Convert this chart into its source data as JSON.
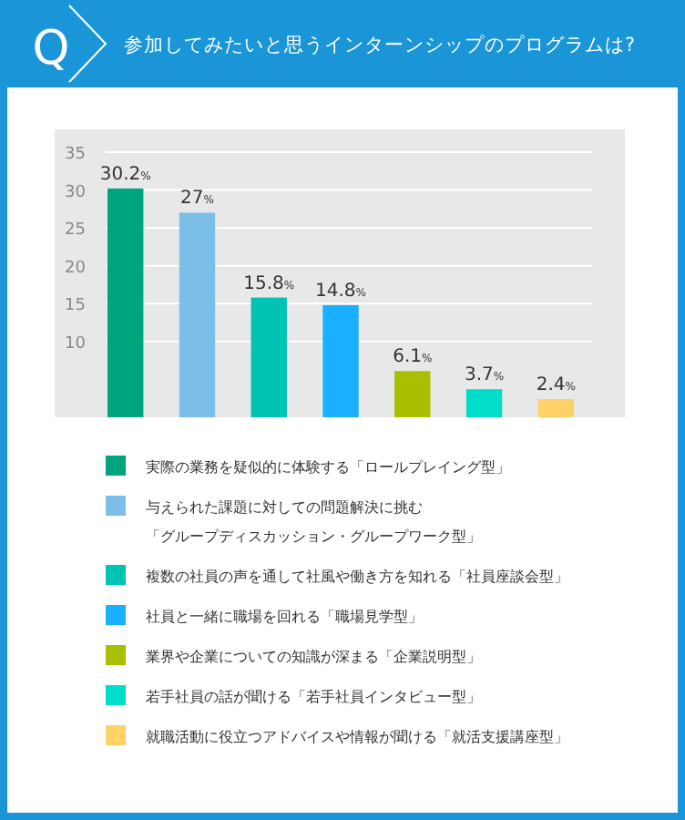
{
  "chart_data": {
    "type": "bar",
    "title": "参加してみたいと思うインターンシップのプログラムは?",
    "annotations": [
      "Q"
    ],
    "categories": [
      null,
      null,
      null,
      null,
      null,
      null,
      null
    ],
    "series": [
      {
        "name": "実際の業務を疑似的に体験する「ロールプレイング型」",
        "color": "#00a57e",
        "values": [
          30.2,
          null,
          null,
          null,
          null,
          null,
          null
        ],
        "value_labels": [
          "30.2%",
          null,
          null,
          null,
          null,
          null,
          null
        ]
      },
      {
        "name": "与えられた課題に対しての問題解決に挑む「グループディスカッション・グループワーク型」",
        "color": "#7bbfe8",
        "values": [
          null,
          27,
          null,
          null,
          null,
          null,
          null
        ],
        "value_labels": [
          null,
          "27%",
          null,
          null,
          null,
          null,
          null
        ]
      },
      {
        "name": "複数の社員の声を通して社風や働き方を知れる「社員座談会型」",
        "color": "#00c4b3",
        "values": [
          null,
          null,
          15.8,
          null,
          null,
          null,
          null
        ],
        "value_labels": [
          null,
          null,
          "15.8%",
          null,
          null,
          null,
          null
        ]
      },
      {
        "name": "社員と一緒に職場を回れる「職場見学型」",
        "color": "#1aafff",
        "values": [
          null,
          null,
          null,
          14.8,
          null,
          null,
          null
        ],
        "value_labels": [
          null,
          null,
          null,
          "14.8%",
          null,
          null,
          null
        ]
      },
      {
        "name": "業界や企業についての知識が深まる「企業説明型」",
        "color": "#a8c000",
        "values": [
          null,
          null,
          null,
          null,
          6.1,
          null,
          null
        ],
        "value_labels": [
          null,
          null,
          null,
          null,
          "6.1%",
          null,
          null
        ]
      },
      {
        "name": "若手社員の話が聞ける「若手社員インタビュー型」",
        "color": "#00ddc8",
        "values": [
          null,
          null,
          null,
          null,
          null,
          3.7,
          null
        ],
        "value_labels": [
          null,
          null,
          null,
          null,
          null,
          "3.7%",
          null
        ]
      },
      {
        "name": "就職活動に役立つアドバイスや情報が聞ける「就活支援講座型」",
        "color": "#ffd166",
        "values": [
          null,
          null,
          null,
          null,
          null,
          null,
          2.4
        ],
        "value_labels": [
          null,
          null,
          null,
          null,
          null,
          null,
          "2.4%"
        ]
      }
    ],
    "ylim": [
      0,
      38
    ],
    "yticks": [
      10,
      15,
      20,
      25,
      30,
      35
    ],
    "grid": "y",
    "legend": "bottom",
    "tick_labels": "y"
  }
}
